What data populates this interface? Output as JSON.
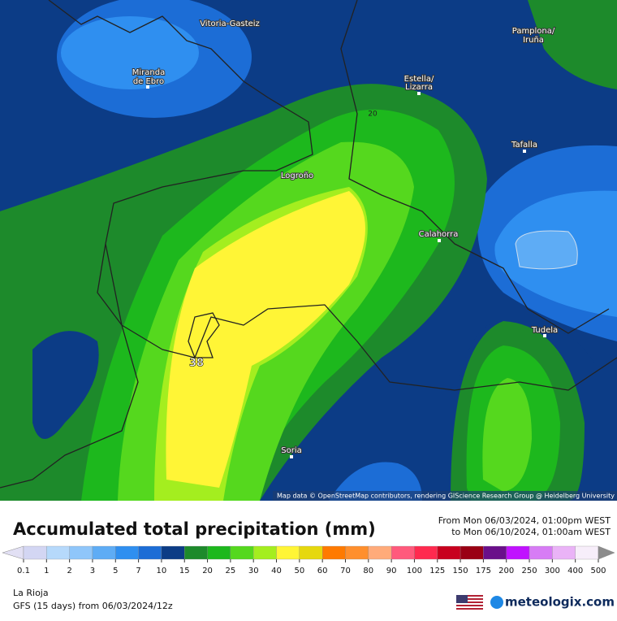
{
  "map": {
    "places": [
      {
        "label": "Vitoria-Gasteiz"
      },
      {
        "label": "Pamplona/"
      },
      {
        "label": "Iruña"
      },
      {
        "label": "Miranda"
      },
      {
        "label": "de Ebro"
      },
      {
        "label": "Estella/"
      },
      {
        "label": "Lizarra"
      },
      {
        "label": "Tafalla"
      },
      {
        "label": "Logroño"
      },
      {
        "label": "Calahorra"
      },
      {
        "label": "Tudela"
      },
      {
        "label": "Soria"
      }
    ],
    "contour_label": "20",
    "max_label": "38",
    "attribution": "Map data © OpenStreetMap contributors, rendering GIScience Research Group @ Heidelberg University"
  },
  "header": {
    "title": "Accumulated total precipitation (mm)",
    "from": "From Mon 06/03/2024, 01:00pm WEST",
    "to": "to Mon 06/10/2024, 01:00am WEST"
  },
  "legend": {
    "ticks": [
      "0.1",
      "1",
      "2",
      "3",
      "5",
      "7",
      "10",
      "15",
      "20",
      "25",
      "30",
      "40",
      "50",
      "60",
      "70",
      "80",
      "90",
      "100",
      "125",
      "150",
      "175",
      "200",
      "250",
      "300",
      "400",
      "500"
    ],
    "colors": [
      "#e2e0f4",
      "#d3d6f3",
      "#b6d9fb",
      "#8fc6fa",
      "#5eacf5",
      "#2f8ff0",
      "#1c6dd6",
      "#0c3c86",
      "#1d8a2b",
      "#1db81d",
      "#55d81e",
      "#a4ee1f",
      "#fff536",
      "#e6d80e",
      "#ff7a00",
      "#ff8f2d",
      "#ffab7a",
      "#ff5a7c",
      "#ff2a4f",
      "#c8001e",
      "#9a0014",
      "#6a0f8a",
      "#c012ff",
      "#d77cf5",
      "#eab3f7",
      "#f7eefa",
      "#c8c8c8",
      "#8c8c8c"
    ]
  },
  "footer": {
    "region": "La Rioja",
    "model": "GFS (15 days) from 06/03/2024/12z",
    "brand": "meteologix.com"
  }
}
